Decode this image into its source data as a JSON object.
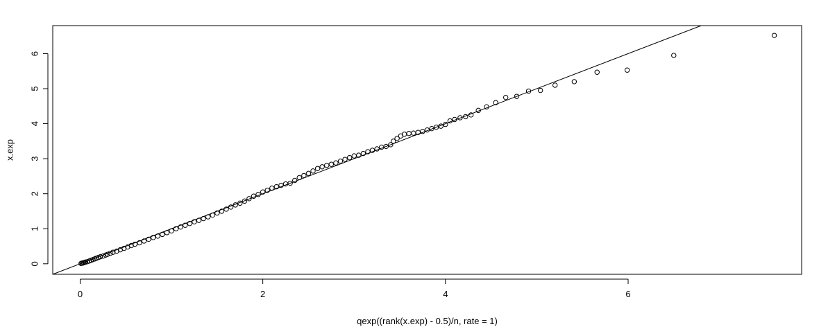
{
  "chart_data": {
    "type": "scatter",
    "title": "",
    "xlabel": "qexp((rank(x.exp) - 0.5)/n, rate = 1)",
    "ylabel": "x.exp",
    "xlim": [
      -0.3,
      7.9
    ],
    "ylim": [
      -0.3,
      6.8
    ],
    "x_ticks": [
      0,
      2,
      4,
      6
    ],
    "y_ticks": [
      0,
      1,
      2,
      3,
      4,
      5,
      6
    ],
    "grid": false,
    "legend": "none",
    "reference_line": {
      "intercept": 0,
      "slope": 1
    },
    "point_style": "open-circle",
    "colors": {
      "points": "#000000",
      "line": "#000000",
      "axes": "#000000"
    },
    "x": [
      0.01,
      0.02,
      0.03,
      0.04,
      0.05,
      0.06,
      0.08,
      0.1,
      0.12,
      0.14,
      0.16,
      0.18,
      0.2,
      0.22,
      0.25,
      0.28,
      0.3,
      0.33,
      0.36,
      0.4,
      0.44,
      0.48,
      0.52,
      0.56,
      0.6,
      0.65,
      0.7,
      0.75,
      0.8,
      0.85,
      0.9,
      0.95,
      1.0,
      1.05,
      1.1,
      1.15,
      1.2,
      1.25,
      1.3,
      1.35,
      1.4,
      1.45,
      1.5,
      1.55,
      1.6,
      1.65,
      1.7,
      1.75,
      1.8,
      1.85,
      1.9,
      1.95,
      2.0,
      2.05,
      2.1,
      2.15,
      2.2,
      2.25,
      2.3,
      2.35,
      2.4,
      2.45,
      2.5,
      2.55,
      2.6,
      2.65,
      2.7,
      2.75,
      2.8,
      2.85,
      2.9,
      2.95,
      3.0,
      3.05,
      3.1,
      3.15,
      3.2,
      3.25,
      3.3,
      3.35,
      3.4,
      3.43,
      3.47,
      3.51,
      3.55,
      3.6,
      3.65,
      3.7,
      3.75,
      3.8,
      3.85,
      3.9,
      3.95,
      4.0,
      4.05,
      4.1,
      4.16,
      4.22,
      4.28,
      4.36,
      4.45,
      4.55,
      4.66,
      4.78,
      4.91,
      5.04,
      5.2,
      5.41,
      5.66,
      5.99,
      6.5,
      7.6
    ],
    "y": [
      0.01,
      0.02,
      0.02,
      0.03,
      0.04,
      0.05,
      0.06,
      0.08,
      0.1,
      0.12,
      0.14,
      0.16,
      0.18,
      0.2,
      0.22,
      0.25,
      0.27,
      0.3,
      0.33,
      0.36,
      0.4,
      0.44,
      0.48,
      0.52,
      0.56,
      0.6,
      0.65,
      0.7,
      0.75,
      0.79,
      0.84,
      0.89,
      0.94,
      1.0,
      1.05,
      1.1,
      1.15,
      1.2,
      1.24,
      1.29,
      1.34,
      1.39,
      1.45,
      1.5,
      1.56,
      1.62,
      1.68,
      1.73,
      1.79,
      1.86,
      1.93,
      1.98,
      2.05,
      2.1,
      2.16,
      2.2,
      2.24,
      2.28,
      2.3,
      2.38,
      2.46,
      2.52,
      2.58,
      2.65,
      2.72,
      2.77,
      2.81,
      2.84,
      2.88,
      2.93,
      2.98,
      3.03,
      3.08,
      3.1,
      3.15,
      3.2,
      3.24,
      3.28,
      3.33,
      3.35,
      3.4,
      3.5,
      3.58,
      3.65,
      3.7,
      3.72,
      3.73,
      3.75,
      3.78,
      3.82,
      3.86,
      3.9,
      3.93,
      3.98,
      4.08,
      4.12,
      4.17,
      4.2,
      4.25,
      4.38,
      4.48,
      4.6,
      4.75,
      4.78,
      4.93,
      4.95,
      5.1,
      5.2,
      5.47,
      5.53,
      5.95,
      6.52
    ]
  }
}
